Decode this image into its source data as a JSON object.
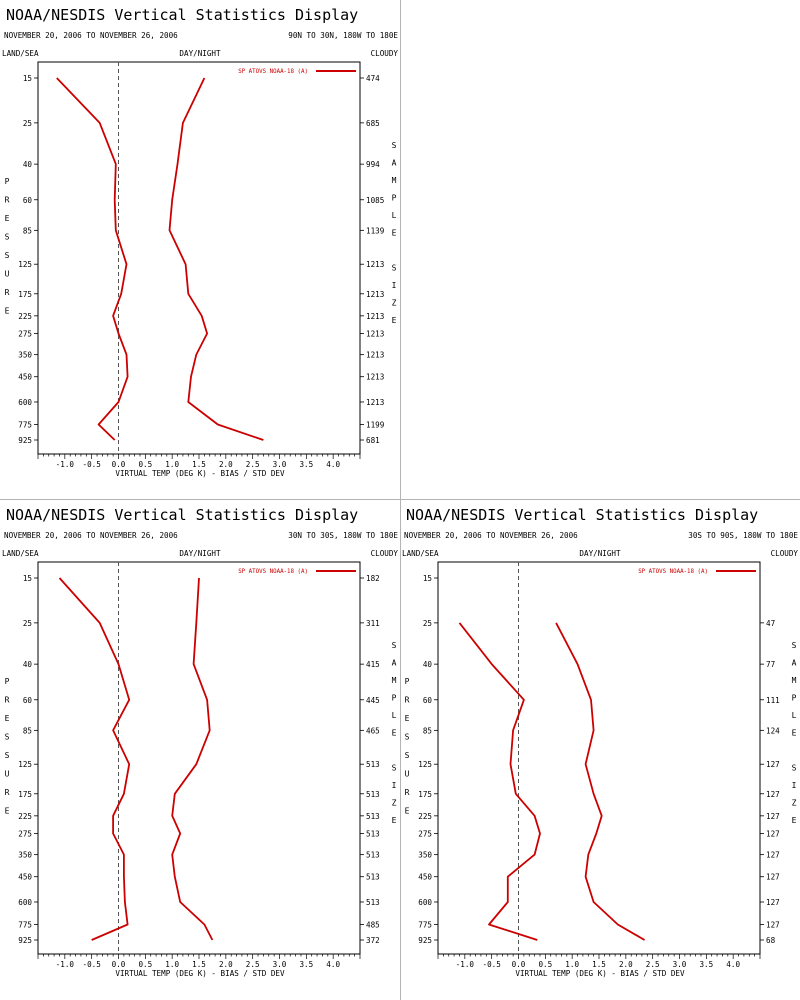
{
  "common": {
    "display_title": "NOAA/NESDIS Vertical Statistics Display",
    "date_range": "NOVEMBER 20, 2006 TO NOVEMBER 26, 2006",
    "land_sea": "LAND/SEA",
    "day_night": "DAY/NIGHT",
    "cloudy": "CLOUDY",
    "y_axis_label": "PRESSURE",
    "right_axis_label": "SAMPLE SIZE",
    "x_axis_label": "VIRTUAL TEMP (DEG K) - BIAS / STD DEV",
    "series_color": "#cc0000",
    "zero_line_color": "#555555"
  },
  "chart_data": [
    {
      "type": "line",
      "panel": "top-left",
      "region": "90N TO 30N, 180W TO 180E",
      "legend": "SP ATOVS NOAA-18 (A)",
      "legend_position": "top-right",
      "pressure_levels": [
        15,
        25,
        40,
        60,
        85,
        125,
        175,
        225,
        275,
        350,
        450,
        600,
        775,
        925
      ],
      "sample_size_levels": [
        15,
        25,
        40,
        60,
        85,
        125,
        175,
        225,
        275,
        350,
        450,
        600,
        775,
        925
      ],
      "sample_sizes": [
        474,
        685,
        994,
        1085,
        1139,
        1213,
        1213,
        1213,
        1213,
        1213,
        1213,
        1213,
        1199,
        681
      ],
      "x_ticks": [
        "-1.0",
        "-0.5",
        "0.0",
        "0.5",
        "1.0",
        "1.5",
        "2.0",
        "2.5",
        "3.0",
        "3.5",
        "4.0"
      ],
      "xlim": [
        -1.5,
        4.5
      ],
      "series": [
        {
          "name": "BIAS",
          "points": [
            [
              -1.15,
              15
            ],
            [
              -0.35,
              25
            ],
            [
              -0.05,
              40
            ],
            [
              -0.07,
              60
            ],
            [
              -0.05,
              85
            ],
            [
              0.15,
              125
            ],
            [
              0.05,
              175
            ],
            [
              -0.1,
              225
            ],
            [
              0.0,
              275
            ],
            [
              0.15,
              350
            ],
            [
              0.17,
              450
            ],
            [
              0.0,
              600
            ],
            [
              -0.37,
              775
            ],
            [
              -0.07,
              925
            ]
          ]
        },
        {
          "name": "STD DEV",
          "points": [
            [
              1.6,
              15
            ],
            [
              1.2,
              25
            ],
            [
              1.1,
              40
            ],
            [
              1.0,
              60
            ],
            [
              0.95,
              85
            ],
            [
              1.25,
              125
            ],
            [
              1.3,
              175
            ],
            [
              1.55,
              225
            ],
            [
              1.65,
              275
            ],
            [
              1.45,
              350
            ],
            [
              1.35,
              450
            ],
            [
              1.3,
              600
            ],
            [
              1.85,
              775
            ],
            [
              2.7,
              925
            ]
          ]
        }
      ]
    },
    {
      "type": "line",
      "panel": "bottom-left",
      "region": "30N TO 30S, 180W TO 180E",
      "legend": "SP ATOVS NOAA-18 (A)",
      "legend_position": "top-right",
      "pressure_levels": [
        15,
        25,
        40,
        60,
        85,
        125,
        175,
        225,
        275,
        350,
        450,
        600,
        775,
        925
      ],
      "sample_size_levels": [
        15,
        25,
        40,
        60,
        85,
        125,
        175,
        225,
        275,
        350,
        450,
        600,
        775,
        925
      ],
      "sample_sizes": [
        182,
        311,
        415,
        445,
        465,
        513,
        513,
        513,
        513,
        513,
        513,
        513,
        485,
        372
      ],
      "x_ticks": [
        "-1.0",
        "-0.5",
        "0.0",
        "0.5",
        "1.0",
        "1.5",
        "2.0",
        "2.5",
        "3.0",
        "3.5",
        "4.0"
      ],
      "xlim": [
        -1.5,
        4.5
      ],
      "series": [
        {
          "name": "BIAS",
          "points": [
            [
              -1.1,
              15
            ],
            [
              -0.35,
              25
            ],
            [
              0.0,
              40
            ],
            [
              0.2,
              60
            ],
            [
              -0.1,
              85
            ],
            [
              0.2,
              125
            ],
            [
              0.1,
              175
            ],
            [
              -0.1,
              225
            ],
            [
              -0.1,
              275
            ],
            [
              0.1,
              350
            ],
            [
              0.1,
              450
            ],
            [
              0.12,
              600
            ],
            [
              0.17,
              775
            ],
            [
              -0.5,
              925
            ]
          ]
        },
        {
          "name": "STD DEV",
          "points": [
            [
              1.5,
              15
            ],
            [
              1.45,
              25
            ],
            [
              1.4,
              40
            ],
            [
              1.65,
              60
            ],
            [
              1.7,
              85
            ],
            [
              1.45,
              125
            ],
            [
              1.05,
              175
            ],
            [
              1.0,
              225
            ],
            [
              1.15,
              275
            ],
            [
              1.0,
              350
            ],
            [
              1.05,
              450
            ],
            [
              1.15,
              600
            ],
            [
              1.6,
              775
            ],
            [
              1.75,
              925
            ]
          ]
        }
      ]
    },
    {
      "type": "line",
      "panel": "bottom-right",
      "region": "30S TO 90S, 180W TO 180E",
      "legend": "SP ATOVS NOAA-18 (A)",
      "legend_position": "top-right",
      "pressure_levels": [
        15,
        25,
        40,
        60,
        85,
        125,
        175,
        225,
        275,
        350,
        450,
        600,
        775,
        925
      ],
      "sample_size_levels": [
        25,
        40,
        60,
        85,
        125,
        175,
        225,
        275,
        350,
        450,
        600,
        775,
        925
      ],
      "sample_sizes": [
        47,
        77,
        111,
        124,
        127,
        127,
        127,
        127,
        127,
        127,
        127,
        127,
        68
      ],
      "x_ticks": [
        "-1.0",
        "-0.5",
        "0.0",
        "0.5",
        "1.0",
        "1.5",
        "2.0",
        "2.5",
        "3.0",
        "3.5",
        "4.0"
      ],
      "xlim": [
        -1.5,
        4.5
      ],
      "series": [
        {
          "name": "BIAS",
          "points": [
            [
              -1.1,
              25
            ],
            [
              -0.5,
              40
            ],
            [
              0.1,
              60
            ],
            [
              -0.1,
              85
            ],
            [
              -0.15,
              125
            ],
            [
              -0.05,
              175
            ],
            [
              0.3,
              225
            ],
            [
              0.4,
              275
            ],
            [
              0.3,
              350
            ],
            [
              -0.2,
              450
            ],
            [
              -0.2,
              600
            ],
            [
              -0.55,
              775
            ],
            [
              0.35,
              925
            ]
          ]
        },
        {
          "name": "STD DEV",
          "points": [
            [
              0.7,
              25
            ],
            [
              1.1,
              40
            ],
            [
              1.35,
              60
            ],
            [
              1.4,
              85
            ],
            [
              1.25,
              125
            ],
            [
              1.4,
              175
            ],
            [
              1.55,
              225
            ],
            [
              1.45,
              275
            ],
            [
              1.3,
              350
            ],
            [
              1.25,
              450
            ],
            [
              1.4,
              600
            ],
            [
              1.85,
              775
            ],
            [
              2.35,
              925
            ]
          ]
        }
      ]
    }
  ]
}
